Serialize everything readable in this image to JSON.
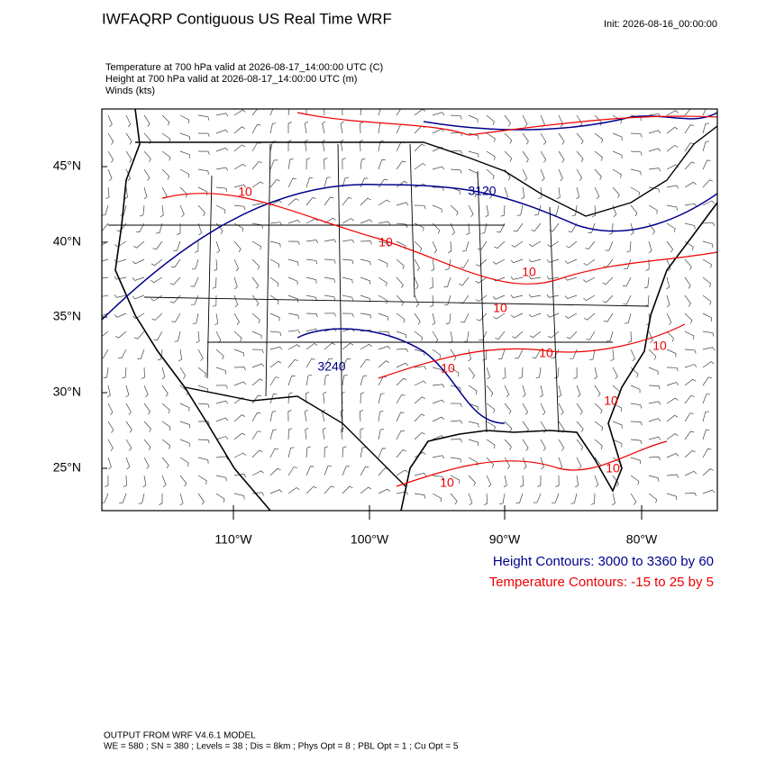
{
  "header": {
    "title": "IWFAQRP Contiguous US Real Time WRF",
    "init": "Init: 2026-08-16_00:00:00"
  },
  "fields": [
    "Temperature at 700 hPa valid at 2026-08-17_14:00:00 UTC   (C)",
    "Height at 700 hPa valid at 2026-08-17_14:00:00 UTC   (m)",
    "Winds   (kts)"
  ],
  "lat_labels": [
    "45°N",
    "40°N",
    "35°N",
    "30°N",
    "25°N"
  ],
  "lon_labels": [
    "110°W",
    "100°W",
    "90°W",
    "80°W"
  ],
  "contour_labels": [
    "10",
    "10",
    "10",
    "10",
    "10",
    "10",
    "10",
    "10",
    "10",
    "10",
    "3240",
    "3120"
  ],
  "legend": [
    "Height Contours: 3000 to 3360 by 60",
    "Temperature Contours: -15 to 25 by 5"
  ],
  "footer": [
    "OUTPUT FROM WRF V4.6.1 MODEL",
    "WE = 580 ; SN = 380 ; Levels = 38 ; Dis = 8km ; Phys Opt = 8 ; PBL Opt = 1 ; Cu Opt = 5"
  ]
}
